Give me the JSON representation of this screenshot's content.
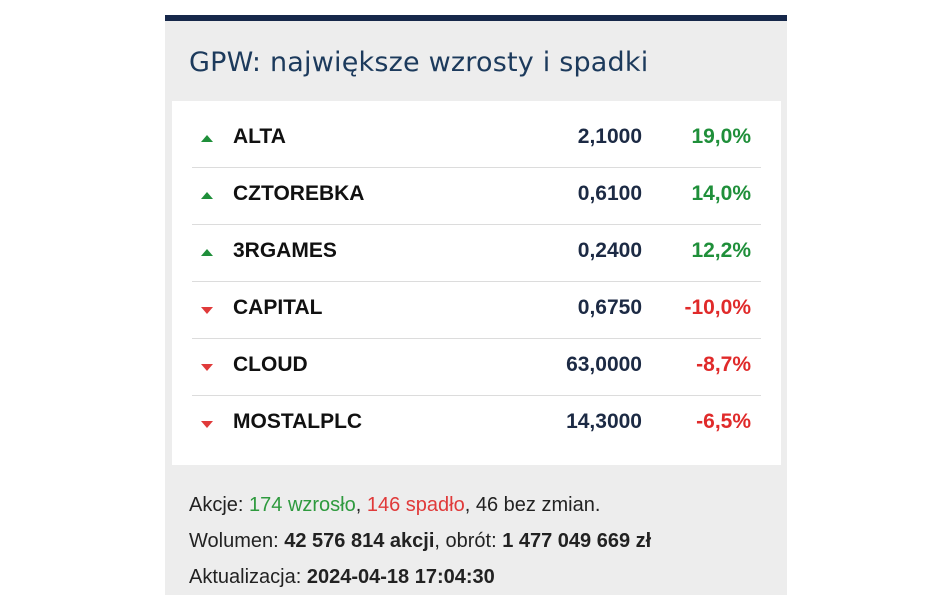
{
  "widget": {
    "title": "GPW: największe wzrosty i spadki"
  },
  "rows": [
    {
      "name": "ALTA",
      "price": "2,1000",
      "change": "19,0%",
      "direction": "up"
    },
    {
      "name": "CZTOREBKA",
      "price": "0,6100",
      "change": "14,0%",
      "direction": "up"
    },
    {
      "name": "3RGAMES",
      "price": "0,2400",
      "change": "12,2%",
      "direction": "up"
    },
    {
      "name": "CAPITAL",
      "price": "0,6750",
      "change": "-10,0%",
      "direction": "down"
    },
    {
      "name": "CLOUD",
      "price": "63,0000",
      "change": "-8,7%",
      "direction": "down"
    },
    {
      "name": "MOSTALPLC",
      "price": "14,3000",
      "change": "-6,5%",
      "direction": "down"
    }
  ],
  "footer": {
    "stocks_label": "Akcje: ",
    "up_count": "174 wzrosło",
    "sep1": ", ",
    "down_count": "146 spadło",
    "unchanged": ", 46 bez zmian.",
    "volume_label": "Wolumen: ",
    "volume_value": "42 576 814 akcji",
    "turnover_label": ", obrót: ",
    "turnover_value": "1 477 049 669 zł",
    "update_label": "Aktualizacja: ",
    "update_value": "2024-04-18 17:04:30"
  },
  "colors": {
    "header_bar": "#16284a",
    "up": "#1f8f3a",
    "down": "#e02a2a",
    "title": "#1c3a5c"
  },
  "icons": {
    "up": "triangle-up-icon",
    "down": "triangle-down-icon"
  }
}
